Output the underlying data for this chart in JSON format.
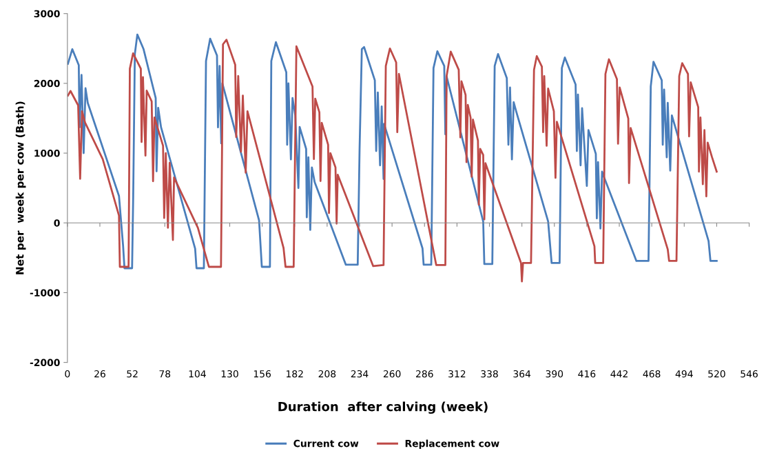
{
  "chart_data": {
    "type": "line",
    "xlabel": "Duration  after calving (week)",
    "ylabel": "Net per  week per cow (Bath)",
    "xlim": [
      0,
      546
    ],
    "xticks": [
      0,
      26,
      52,
      78,
      104,
      130,
      156,
      182,
      208,
      234,
      260,
      286,
      312,
      338,
      364,
      390,
      416,
      442,
      468,
      494,
      520,
      546
    ],
    "ylim": [
      -2000,
      3000
    ],
    "yticks": [
      -2000,
      -1000,
      0,
      1000,
      2000,
      3000
    ],
    "legend": "bottom",
    "marker": "none",
    "line_style": "solid",
    "series": [
      {
        "name": "Current cow",
        "color": "#4a7ebb",
        "x": [
          0.4,
          3.9,
          9.1,
          9.7,
          11.3,
          13,
          14.5,
          16.3,
          41.3,
          44.6,
          45.7,
          51.8,
          52.7,
          54,
          56,
          61,
          70.7,
          71.4,
          72.7,
          75,
          102.3,
          103.4,
          109.3,
          111,
          114.3,
          119.8,
          120.6,
          121.9,
          123.2,
          124.1,
          153.5,
          155.7,
          162.2,
          163.3,
          167,
          175.3,
          176,
          177,
          179,
          180.3,
          182.5,
          185,
          186,
          191.2,
          191.7,
          193,
          194.5,
          195.8,
          198,
          223,
          232.5,
          234,
          235.8,
          237.6,
          246.2,
          247.3,
          248.6,
          250.4,
          251.7,
          253.2,
          253.6,
          284.4,
          285.3,
          291.4,
          293.2,
          296.3,
          301.8,
          302.7,
          303.7,
          333,
          333.9,
          340.3,
          342.2,
          344.9,
          351.9,
          353.2,
          354.5,
          356,
          357.4,
          359.4,
          385,
          387.8,
          394.2,
          396,
          398.4,
          407,
          408,
          408.9,
          411,
          412.2,
          416,
          417.3,
          423.2,
          424,
          425,
          426.9,
          428.2,
          430,
          455.7,
          465.4,
          467.2,
          469.4,
          476,
          476.8,
          477.9,
          480,
          480.8,
          482.8,
          484.1,
          513.5,
          515,
          520
        ],
        "values": [
          2280,
          2490,
          2260,
          1370,
          2120,
          1000,
          1930,
          1720,
          386,
          -330,
          -650,
          -650,
          386,
          2420,
          2700,
          2490,
          1790,
          740,
          1650,
          1370,
          -370,
          -650,
          -650,
          2320,
          2640,
          2400,
          1370,
          2250,
          1140,
          2000,
          35,
          -630,
          -630,
          2320,
          2590,
          2160,
          1120,
          2000,
          910,
          1790,
          1540,
          500,
          1375,
          1060,
          80,
          940,
          -100,
          795,
          586,
          -600,
          -600,
          1060,
          2490,
          2520,
          2045,
          1030,
          1870,
          825,
          1670,
          630,
          1420,
          -366,
          -600,
          -600,
          2220,
          2460,
          2250,
          1270,
          2100,
          20,
          -590,
          -590,
          2250,
          2420,
          2075,
          1120,
          1940,
          910,
          1730,
          1600,
          20,
          -575,
          -575,
          2220,
          2370,
          1985,
          1030,
          1840,
          825,
          1645,
          530,
          1330,
          990,
          65,
          870,
          -80,
          735,
          645,
          -545,
          -545,
          1955,
          2310,
          2045,
          1120,
          1910,
          940,
          1720,
          750,
          1540,
          -260,
          -545,
          -545
        ]
      },
      {
        "name": "Replacement cow",
        "color": "#be4b48",
        "x": [
          0.4,
          2.5,
          8.6,
          10.2,
          11.7,
          14.1,
          28.3,
          41.3,
          42,
          49,
          50,
          52.6,
          58.8,
          59.4,
          60.5,
          62.5,
          63.5,
          67.5,
          68.6,
          69.7,
          76.6,
          77.5,
          78.8,
          80.5,
          81.9,
          84.5,
          85.4,
          104.5,
          113.3,
          123,
          124.6,
          127.4,
          134.4,
          135.2,
          136.8,
          139,
          140.5,
          142.8,
          144.2,
          173.1,
          174.7,
          181.2,
          183.4,
          196.3,
          197.4,
          198.5,
          201.8,
          202.7,
          203.7,
          208.8,
          209.5,
          210.6,
          214.7,
          215.6,
          216.5,
          244.9,
          253.2,
          255,
          258.3,
          263.3,
          264.2,
          265.5,
          295.4,
          302.7,
          303.7,
          307,
          313.4,
          314.7,
          315.6,
          318.9,
          319.6,
          320.7,
          322.9,
          323.8,
          324.8,
          328.8,
          329.5,
          330.6,
          333,
          333.9,
          334.8,
          363.3,
          364,
          364.9,
          371.3,
          373.7,
          375.9,
          380,
          381,
          381.9,
          383.8,
          385,
          389.6,
          390.9,
          392,
          422.1,
          422.7,
          429.1,
          430.9,
          433.7,
          440.1,
          441,
          442.3,
          449.2,
          449.8,
          451.1,
          480.8,
          481.9,
          487.8,
          490,
          492.4,
          497,
          497.9,
          499.2,
          505.2,
          505.8,
          507,
          508.9,
          510.2,
          511.7,
          512.8,
          516.2,
          520
        ],
        "values": [
          1825,
          1890,
          1685,
          632,
          1600,
          1440,
          913,
          105,
          -630,
          -630,
          2210,
          2430,
          2210,
          1160,
          2090,
          965,
          1895,
          1740,
          597,
          1510,
          1105,
          70,
          1000,
          -70,
          860,
          -245,
          650,
          -70,
          -630,
          -630,
          2560,
          2625,
          2265,
          1230,
          2105,
          1020,
          1825,
          720,
          1600,
          -360,
          -630,
          -630,
          2530,
          1955,
          915,
          1780,
          1585,
          600,
          1435,
          1120,
          140,
          1000,
          795,
          -10,
          690,
          -620,
          -605,
          2250,
          2500,
          2300,
          1300,
          2135,
          -605,
          -605,
          2105,
          2455,
          2195,
          1225,
          2030,
          1835,
          870,
          1690,
          1510,
          660,
          1480,
          1180,
          260,
          1060,
          975,
          50,
          855,
          -575,
          -840,
          -575,
          -575,
          2195,
          2390,
          2240,
          1300,
          2105,
          1105,
          1925,
          1600,
          645,
          1450,
          -335,
          -575,
          -575,
          2135,
          2345,
          2060,
          1135,
          1940,
          1495,
          570,
          1360,
          -380,
          -545,
          -545,
          2105,
          2290,
          2135,
          1240,
          2015,
          1660,
          735,
          1510,
          555,
          1330,
          380,
          1150,
          945,
          735
        ]
      }
    ]
  }
}
